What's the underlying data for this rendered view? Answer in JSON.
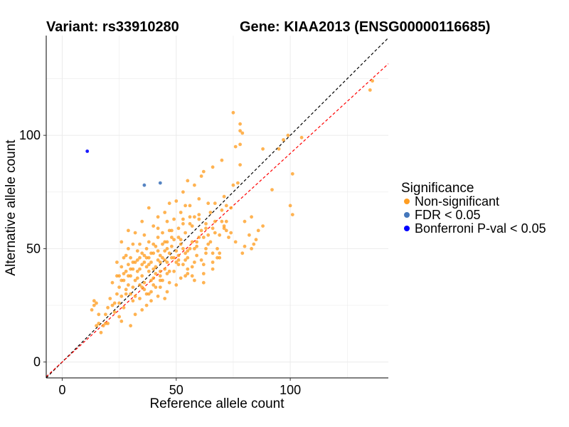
{
  "chart_data": {
    "type": "scatter",
    "title_left": "Variant: rs33910280",
    "title_right": "Gene: KIAA2013 (ENSG00000116685)",
    "xlabel": "Reference allele count",
    "ylabel": "Alternative allele count",
    "xlim": [
      -7,
      143
    ],
    "ylim": [
      -7,
      144
    ],
    "xticks": [
      0,
      50,
      100
    ],
    "yticks": [
      0,
      50,
      100
    ],
    "grid": true,
    "legend": {
      "title": "Significance",
      "position": "right",
      "entries": [
        {
          "label": "Non-significant",
          "color": "#ff9d21"
        },
        {
          "label": "FDR < 0.05",
          "color": "#4477bb"
        },
        {
          "label": "Bonferroni P-val < 0.05",
          "color": "#0000ff"
        }
      ]
    },
    "reference_lines": [
      {
        "slope": 1.0,
        "intercept": 0,
        "color": "#000000",
        "style": "dashed"
      },
      {
        "slope": 0.92,
        "intercept": 0,
        "color": "#ff0000",
        "style": "dashed"
      }
    ],
    "series": [
      {
        "name": "Non-significant",
        "color": "#ff9d21",
        "points": [
          [
            136,
            124
          ],
          [
            135,
            120
          ],
          [
            105,
            99
          ],
          [
            101,
            65
          ],
          [
            101,
            83
          ],
          [
            99,
            100
          ],
          [
            100,
            69
          ],
          [
            97,
            98
          ],
          [
            95,
            94
          ],
          [
            92,
            76
          ],
          [
            88,
            94
          ],
          [
            88,
            60
          ],
          [
            85,
            54
          ],
          [
            84,
            52
          ],
          [
            83,
            50
          ],
          [
            82,
            56
          ],
          [
            80,
            51
          ],
          [
            79,
            48
          ],
          [
            78,
            102
          ],
          [
            79,
            101
          ],
          [
            78,
            105
          ],
          [
            78,
            96
          ],
          [
            78,
            87
          ],
          [
            77,
            79
          ],
          [
            76,
            95
          ],
          [
            75,
            110
          ],
          [
            75,
            78
          ],
          [
            74,
            57
          ],
          [
            72,
            62
          ],
          [
            72,
            69
          ],
          [
            71,
            60
          ],
          [
            71,
            73
          ],
          [
            70,
            67
          ],
          [
            70,
            89
          ],
          [
            69,
            56
          ],
          [
            69,
            48
          ],
          [
            68,
            46
          ],
          [
            67,
            70
          ],
          [
            67,
            62
          ],
          [
            66,
            59
          ],
          [
            66,
            44
          ],
          [
            65,
            66
          ],
          [
            64,
            56
          ],
          [
            64,
            52
          ],
          [
            63,
            61
          ],
          [
            63,
            48
          ],
          [
            62,
            43
          ],
          [
            62,
            39
          ],
          [
            61,
            58
          ],
          [
            61,
            82
          ],
          [
            60,
            65
          ],
          [
            60,
            55
          ],
          [
            59,
            51
          ],
          [
            59,
            47
          ],
          [
            58,
            44
          ],
          [
            58,
            36
          ],
          [
            57,
            60
          ],
          [
            57,
            53
          ],
          [
            56,
            64
          ],
          [
            56,
            50
          ],
          [
            55,
            46
          ],
          [
            55,
            39
          ],
          [
            54,
            69
          ],
          [
            54,
            57
          ],
          [
            54,
            48
          ],
          [
            53,
            61
          ],
          [
            53,
            43
          ],
          [
            52,
            52
          ],
          [
            52,
            37
          ],
          [
            51,
            59
          ],
          [
            51,
            55
          ],
          [
            51,
            45
          ],
          [
            50,
            71
          ],
          [
            50,
            49
          ],
          [
            49,
            63
          ],
          [
            49,
            54
          ],
          [
            49,
            40
          ],
          [
            48,
            51
          ],
          [
            48,
            46
          ],
          [
            47,
            58
          ],
          [
            47,
            35
          ],
          [
            46,
            62
          ],
          [
            46,
            53
          ],
          [
            46,
            44
          ],
          [
            45,
            49
          ],
          [
            45,
            41
          ],
          [
            45,
            28
          ],
          [
            44,
            57
          ],
          [
            44,
            52
          ],
          [
            43,
            47
          ],
          [
            43,
            40
          ],
          [
            43,
            33
          ],
          [
            42,
            55
          ],
          [
            42,
            45
          ],
          [
            41,
            51
          ],
          [
            41,
            42
          ],
          [
            40,
            60
          ],
          [
            40,
            48
          ],
          [
            40,
            37
          ],
          [
            39,
            44
          ],
          [
            39,
            31
          ],
          [
            38,
            53
          ],
          [
            38,
            46
          ],
          [
            38,
            40
          ],
          [
            37,
            50
          ],
          [
            37,
            42
          ],
          [
            37,
            25
          ],
          [
            36,
            56
          ],
          [
            36,
            47
          ],
          [
            36,
            35
          ],
          [
            35,
            43
          ],
          [
            35,
            38
          ],
          [
            34,
            52
          ],
          [
            34,
            46
          ],
          [
            34,
            28
          ],
          [
            33,
            49
          ],
          [
            33,
            40
          ],
          [
            32,
            44
          ],
          [
            32,
            36
          ],
          [
            32,
            21
          ],
          [
            31,
            52
          ],
          [
            31,
            41
          ],
          [
            30,
            46
          ],
          [
            30,
            38
          ],
          [
            30,
            30
          ],
          [
            29,
            50
          ],
          [
            29,
            43
          ],
          [
            29,
            34
          ],
          [
            28,
            40
          ],
          [
            28,
            32
          ],
          [
            27,
            46
          ],
          [
            27,
            36
          ],
          [
            26,
            42
          ],
          [
            26,
            29
          ],
          [
            26,
            18
          ],
          [
            25,
            38
          ],
          [
            25,
            33
          ],
          [
            24,
            44
          ],
          [
            24,
            30
          ],
          [
            23,
            26
          ],
          [
            23,
            22
          ],
          [
            22,
            35
          ],
          [
            21,
            28
          ],
          [
            20,
            24
          ],
          [
            20,
            17
          ],
          [
            19,
            21
          ],
          [
            18,
            16
          ],
          [
            17,
            13
          ],
          [
            16,
            17
          ],
          [
            15,
            26
          ],
          [
            15,
            16
          ],
          [
            14,
            25
          ],
          [
            14,
            27
          ],
          [
            13,
            23
          ],
          [
            55,
            41
          ],
          [
            53,
            63
          ],
          [
            50,
            44
          ],
          [
            47,
            48
          ],
          [
            44,
            46
          ],
          [
            42,
            59
          ],
          [
            40,
            52
          ],
          [
            58,
            50
          ],
          [
            62,
            55
          ],
          [
            66,
            48
          ],
          [
            70,
            62
          ],
          [
            72,
            58
          ],
          [
            60,
            72
          ],
          [
            64,
            70
          ],
          [
            56,
            61
          ],
          [
            52,
            54
          ],
          [
            48,
            58
          ],
          [
            45,
            45
          ],
          [
            41,
            39
          ],
          [
            38,
            43
          ],
          [
            35,
            48
          ],
          [
            33,
            45
          ],
          [
            31,
            33
          ],
          [
            28,
            47
          ],
          [
            27,
            39
          ],
          [
            36,
            32
          ],
          [
            39,
            27
          ],
          [
            42,
            29
          ],
          [
            46,
            31
          ],
          [
            50,
            34
          ],
          [
            54,
            38
          ],
          [
            57,
            42
          ],
          [
            61,
            45
          ],
          [
            65,
            53
          ],
          [
            68,
            50
          ],
          [
            58,
            64
          ],
          [
            63,
            59
          ],
          [
            53,
            50
          ],
          [
            49,
            46
          ],
          [
            46,
            50
          ],
          [
            43,
            44
          ],
          [
            40,
            41
          ],
          [
            37,
            46
          ],
          [
            34,
            41
          ],
          [
            31,
            44
          ],
          [
            29,
            38
          ],
          [
            26,
            36
          ],
          [
            24,
            38
          ],
          [
            32,
            29
          ],
          [
            35,
            33
          ],
          [
            39,
            36
          ],
          [
            43,
            38
          ],
          [
            47,
            40
          ],
          [
            51,
            43
          ],
          [
            55,
            49
          ],
          [
            59,
            53
          ],
          [
            63,
            50
          ],
          [
            67,
            57
          ],
          [
            71,
            59
          ],
          [
            74,
            68
          ],
          [
            48,
            55
          ],
          [
            45,
            53
          ],
          [
            42,
            49
          ],
          [
            39,
            48
          ],
          [
            36,
            44
          ],
          [
            33,
            37
          ],
          [
            30,
            41
          ],
          [
            52,
            66
          ],
          [
            56,
            69
          ],
          [
            60,
            63
          ],
          [
            44,
            36
          ],
          [
            41,
            33
          ],
          [
            38,
            30
          ],
          [
            35,
            23
          ],
          [
            30,
            16
          ],
          [
            27,
            24
          ],
          [
            25,
            20
          ],
          [
            22,
            25
          ],
          [
            19,
            17
          ],
          [
            16,
            21
          ],
          [
            57,
            38
          ],
          [
            62,
            35
          ],
          [
            66,
            41
          ],
          [
            69,
            46
          ],
          [
            73,
            55
          ],
          [
            76,
            53
          ],
          [
            80,
            62
          ],
          [
            83,
            64
          ],
          [
            86,
            58
          ],
          [
            53,
            75
          ],
          [
            55,
            80
          ],
          [
            58,
            78
          ],
          [
            62,
            84
          ],
          [
            66,
            86
          ],
          [
            47,
            70
          ],
          [
            45,
            66
          ],
          [
            42,
            64
          ],
          [
            38,
            68
          ],
          [
            35,
            62
          ],
          [
            32,
            57
          ],
          [
            29,
            58
          ],
          [
            26,
            53
          ],
          [
            51,
            47
          ],
          [
            54,
            45
          ],
          [
            46,
            39
          ],
          [
            43,
            36
          ],
          [
            40,
            34
          ],
          [
            37,
            30
          ],
          [
            34,
            34
          ],
          [
            31,
            27
          ],
          [
            28,
            30
          ],
          [
            25,
            26
          ]
        ]
      },
      {
        "name": "FDR < 0.05",
        "color": "#4477bb",
        "points": [
          [
            36,
            78
          ],
          [
            43,
            79
          ]
        ]
      },
      {
        "name": "Bonferroni P-val < 0.05",
        "color": "#0000ff",
        "points": [
          [
            11,
            93
          ]
        ]
      }
    ]
  }
}
